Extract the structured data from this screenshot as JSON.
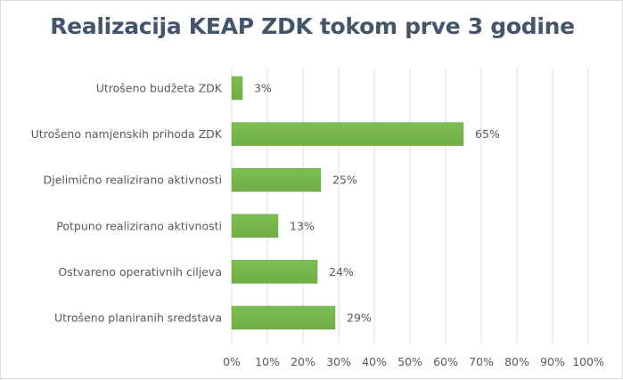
{
  "chart_data": {
    "type": "bar",
    "orientation": "horizontal",
    "title": "Realizacija KEAP ZDK tokom prve 3 godine",
    "categories": [
      "Utrošeno budžeta ZDK",
      "Utrošeno namjenskih prihoda ZDK",
      "Djelimično realizirano aktivnosti",
      "Potpuno realizirano aktivnosti",
      "Ostvareno operativnih ciljeva",
      "Utrošeno planiranih sredstava"
    ],
    "values": [
      3,
      65,
      25,
      13,
      24,
      29
    ],
    "data_labels": [
      "3%",
      "65%",
      "25%",
      "13%",
      "24%",
      "29%"
    ],
    "xlim": [
      0,
      100
    ],
    "x_ticks": [
      "0%",
      "10%",
      "20%",
      "30%",
      "40%",
      "50%",
      "60%",
      "70%",
      "80%",
      "90%",
      "100%"
    ],
    "grid": "vertical",
    "legend": "none",
    "colors": {
      "bar": "#70ad47",
      "title": "#44546a",
      "grid": "#d9d9d9"
    }
  }
}
